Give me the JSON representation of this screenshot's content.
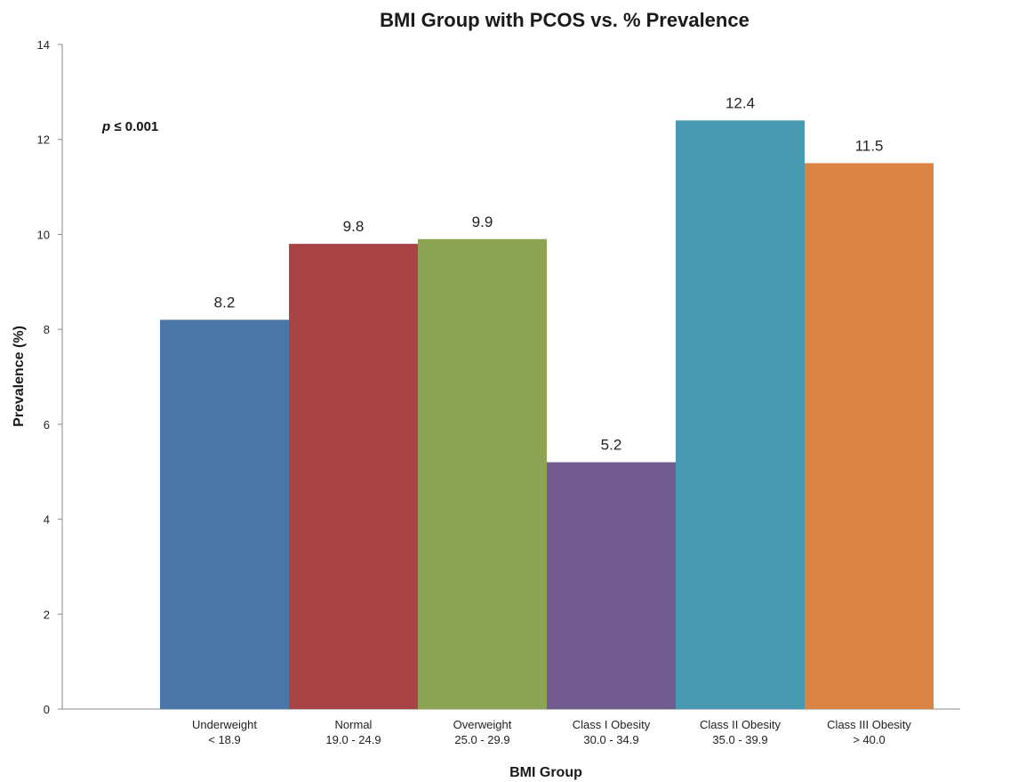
{
  "chart_data": {
    "type": "bar",
    "title": "BMI Group with PCOS vs. % Prevalence",
    "xlabel": "BMI Group",
    "ylabel": "Prevalence (%)",
    "ylim": [
      0,
      14
    ],
    "yticks": [
      "0",
      "2",
      "4",
      "6",
      "8",
      "10",
      "12",
      "14"
    ],
    "grid": false,
    "categories": [
      {
        "line1": "Underweight",
        "line2": "< 18.9"
      },
      {
        "line1": "Normal",
        "line2": "19.0 - 24.9"
      },
      {
        "line1": "Overweight",
        "line2": "25.0 - 29.9"
      },
      {
        "line1": "Class I Obesity",
        "line2": "30.0 - 34.9"
      },
      {
        "line1": "Class II Obesity",
        "line2": "35.0 - 39.9"
      },
      {
        "line1": "Class III Obesity",
        "line2": "> 40.0"
      }
    ],
    "values": [
      8.2,
      9.8,
      9.9,
      5.2,
      12.4,
      11.5
    ],
    "data_labels": [
      "8.2",
      "9.8",
      "9.9",
      "5.2",
      "12.4",
      "11.5"
    ],
    "colors": [
      "#4a76a8",
      "#a84446",
      "#8ba352",
      "#725b8f",
      "#4699b0",
      "#d98445"
    ],
    "annotation": {
      "italic": "p",
      "text": " ≤ 0.001"
    }
  }
}
